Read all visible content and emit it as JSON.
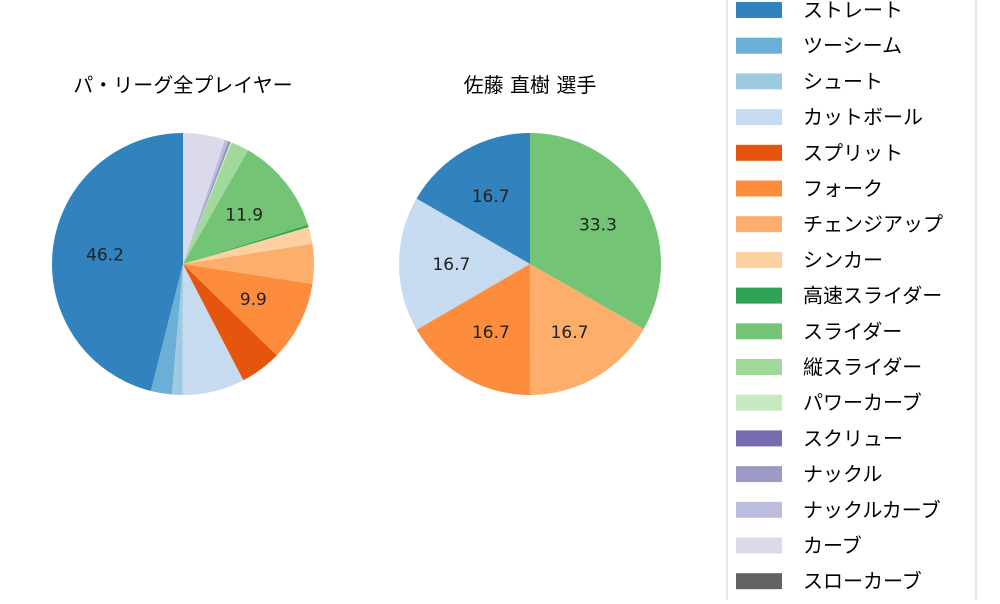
{
  "chart_data": [
    {
      "type": "pie",
      "title": "パ・リーグ全プレイヤー",
      "categories": [
        "ストレート",
        "ツーシーム",
        "シュート",
        "カットボール",
        "スプリット",
        "フォーク",
        "チェンジアップ",
        "シンカー",
        "高速スライダー",
        "スライダー",
        "縦スライダー",
        "パワーカーブ",
        "スクリュー",
        "ナックル",
        "ナックルカーブ",
        "カーブ",
        "スローカーブ"
      ],
      "values": [
        46.2,
        2.6,
        1.3,
        7.7,
        5.1,
        9.9,
        4.9,
        2.1,
        0.3,
        11.9,
        2.2,
        0.2,
        0.1,
        0.2,
        0.4,
        5.2,
        0.0
      ],
      "data_labels": [
        "46.2",
        "",
        "",
        "",
        "",
        "9.9",
        "",
        "",
        "",
        "11.9",
        "",
        "",
        "",
        "",
        "",
        "",
        ""
      ]
    },
    {
      "type": "pie",
      "title": "佐藤 直樹  選手",
      "categories": [
        "ストレート",
        "ツーシーム",
        "シュート",
        "カットボール",
        "スプリット",
        "フォーク",
        "チェンジアップ",
        "シンカー",
        "高速スライダー",
        "スライダー",
        "縦スライダー",
        "パワーカーブ",
        "スクリュー",
        "ナックル",
        "ナックルカーブ",
        "カーブ",
        "スローカーブ"
      ],
      "values": [
        16.7,
        0,
        0,
        16.7,
        0,
        16.7,
        16.7,
        0,
        0,
        33.3,
        0,
        0,
        0,
        0,
        0,
        0,
        0
      ],
      "data_labels": [
        "16.7",
        "",
        "",
        "16.7",
        "",
        "16.7",
        "16.7",
        "",
        "",
        "33.3",
        "",
        "",
        "",
        "",
        "",
        "",
        ""
      ]
    }
  ],
  "legend": {
    "placement": "right",
    "items": [
      {
        "label": "ストレート",
        "color": "#3182bd"
      },
      {
        "label": "ツーシーム",
        "color": "#6baed6"
      },
      {
        "label": "シュート",
        "color": "#9ecae1"
      },
      {
        "label": "カットボール",
        "color": "#c6dbef"
      },
      {
        "label": "スプリット",
        "color": "#e6550d"
      },
      {
        "label": "フォーク",
        "color": "#fd8d3c"
      },
      {
        "label": "チェンジアップ",
        "color": "#fdae6b"
      },
      {
        "label": "シンカー",
        "color": "#fdd0a2"
      },
      {
        "label": "高速スライダー",
        "color": "#31a354"
      },
      {
        "label": "スライダー",
        "color": "#74c476"
      },
      {
        "label": "縦スライダー",
        "color": "#a1d99b"
      },
      {
        "label": "パワーカーブ",
        "color": "#c7e9c0"
      },
      {
        "label": "スクリュー",
        "color": "#756bb1"
      },
      {
        "label": "ナックル",
        "color": "#9e9ac8"
      },
      {
        "label": "ナックルカーブ",
        "color": "#bcbddc"
      },
      {
        "label": "カーブ",
        "color": "#dadaeb"
      },
      {
        "label": "スローカーブ",
        "color": "#636363"
      }
    ]
  }
}
